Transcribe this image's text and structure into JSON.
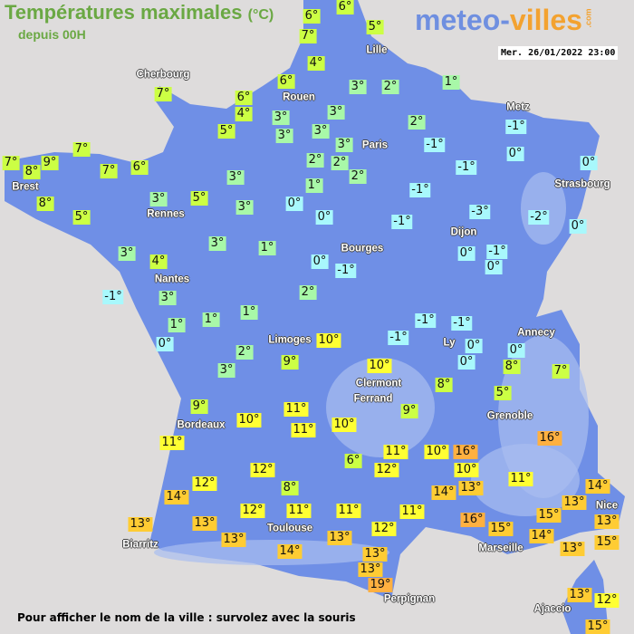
{
  "header": {
    "title": "Températures maximales",
    "title_unit": "(°C)",
    "subtitle": "depuis 00H",
    "logo_part1": "meteo-",
    "logo_part2": "villes",
    "logo_suffix": ".com",
    "timestamp": "Mer. 26/01/2022 23:00"
  },
  "footer": {
    "hint": "Pour afficher le nom de la ville : survolez avec la souris"
  },
  "colors": {
    "sea": "#dedcdc",
    "land": "#6f8fe6",
    "relief": "#a9bdf0",
    "cold": "#a8f8fc",
    "cool": "#a8f8a8",
    "mild": "#ccff44",
    "warm": "#ffff33",
    "hot": "#ffcc33",
    "very_hot": "#ffb040"
  },
  "cities": [
    "Cherbourg",
    "Rouen",
    "Lille",
    "Paris",
    "Metz",
    "Strasbourg",
    "Brest",
    "Rennes",
    "Nantes",
    "Bourges",
    "Dijon",
    "Limoges",
    "Ly",
    "Annecy",
    "Clermont",
    "Ferrand",
    "Grenoble",
    "Bordeaux",
    "Toulouse",
    "Biarritz",
    "Marseille",
    "Perpignan",
    "Nice",
    "Ajaccio"
  ],
  "temperatures": [
    "6°",
    "6°",
    "7°",
    "5°",
    "4°",
    "6°",
    "3°",
    "2°",
    "1°",
    "7°",
    "6°",
    "4°",
    "5°",
    "3°",
    "3°",
    "3°",
    "3°",
    "3°",
    "2°",
    "-1°",
    "-1°",
    "0°",
    "0°",
    "-1°",
    "-1°",
    "-3°",
    "-2°",
    "0°",
    "2°",
    "2°",
    "2°",
    "1°",
    "0°",
    "0°",
    "-1°",
    "7°",
    "7°",
    "8°",
    "9°",
    "7°",
    "6°",
    "3°",
    "8°",
    "5°",
    "3°",
    "5°",
    "3°",
    "3°",
    "4°",
    "3°",
    "1°",
    "0°",
    "-1°",
    "-1°",
    "3°",
    "1°",
    "1°",
    "1°",
    "0°",
    "2°",
    "3°",
    "2°",
    "-1°",
    "-1°",
    "-1°",
    "0°",
    "0°",
    "0°",
    "-1°",
    "0°",
    "0°",
    "8°",
    "5°",
    "7°",
    "10°",
    "9°",
    "10°",
    "8°",
    "9°",
    "9°",
    "10°",
    "11°",
    "11°",
    "10°",
    "11°",
    "12°",
    "8°",
    "6°",
    "11°",
    "12°",
    "10°",
    "16°",
    "10°",
    "13°",
    "14°",
    "16°",
    "11°",
    "12°",
    "14°",
    "12°",
    "11°",
    "11°",
    "11°",
    "13°",
    "13°",
    "13°",
    "13°",
    "12°",
    "16°",
    "15°",
    "15°",
    "14°",
    "13°",
    "13°",
    "15°",
    "14°",
    "13°",
    "13°",
    "19°",
    "14°",
    "13°",
    "13°",
    "12°",
    "15°",
    "14°"
  ]
}
